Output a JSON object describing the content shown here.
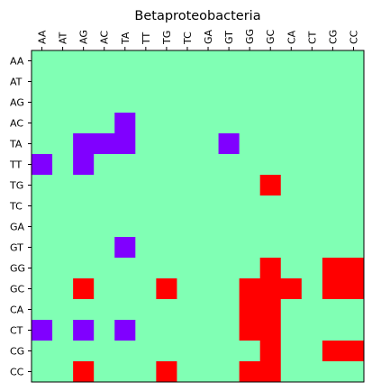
{
  "chart_data": {
    "type": "heatmap",
    "title": "Betaproteobacteria",
    "x_categories": [
      "AA",
      "AT",
      "AG",
      "AC",
      "TA",
      "TT",
      "TG",
      "TC",
      "GA",
      "GT",
      "GG",
      "GC",
      "CA",
      "CT",
      "CG",
      "CC"
    ],
    "y_categories": [
      "AA",
      "AT",
      "AG",
      "AC",
      "TA",
      "TT",
      "TG",
      "TC",
      "GA",
      "GT",
      "GG",
      "GC",
      "CA",
      "CT",
      "CG",
      "CC"
    ],
    "x_axis_position": "top",
    "x_tick_rotation": 90,
    "grid": false,
    "colors": {
      "-1": "#8000ff",
      "0": "#80ffb4",
      "1": "#ff0000"
    },
    "values": [
      [
        0,
        0,
        0,
        0,
        0,
        0,
        0,
        0,
        0,
        0,
        0,
        0,
        0,
        0,
        0,
        0
      ],
      [
        0,
        0,
        0,
        0,
        0,
        0,
        0,
        0,
        0,
        0,
        0,
        0,
        0,
        0,
        0,
        0
      ],
      [
        0,
        0,
        0,
        0,
        0,
        0,
        0,
        0,
        0,
        0,
        0,
        0,
        0,
        0,
        0,
        0
      ],
      [
        0,
        0,
        0,
        0,
        -1,
        0,
        0,
        0,
        0,
        0,
        0,
        0,
        0,
        0,
        0,
        0
      ],
      [
        0,
        0,
        -1,
        -1,
        -1,
        0,
        0,
        0,
        0,
        -1,
        0,
        0,
        0,
        0,
        0,
        0
      ],
      [
        -1,
        0,
        -1,
        0,
        0,
        0,
        0,
        0,
        0,
        0,
        0,
        0,
        0,
        0,
        0,
        0
      ],
      [
        0,
        0,
        0,
        0,
        0,
        0,
        0,
        0,
        0,
        0,
        0,
        1,
        0,
        0,
        0,
        0
      ],
      [
        0,
        0,
        0,
        0,
        0,
        0,
        0,
        0,
        0,
        0,
        0,
        0,
        0,
        0,
        0,
        0
      ],
      [
        0,
        0,
        0,
        0,
        0,
        0,
        0,
        0,
        0,
        0,
        0,
        0,
        0,
        0,
        0,
        0
      ],
      [
        0,
        0,
        0,
        0,
        -1,
        0,
        0,
        0,
        0,
        0,
        0,
        0,
        0,
        0,
        0,
        0
      ],
      [
        0,
        0,
        0,
        0,
        0,
        0,
        0,
        0,
        0,
        0,
        0,
        1,
        0,
        0,
        1,
        1
      ],
      [
        0,
        0,
        1,
        0,
        0,
        0,
        1,
        0,
        0,
        0,
        1,
        1,
        1,
        0,
        1,
        1
      ],
      [
        0,
        0,
        0,
        0,
        0,
        0,
        0,
        0,
        0,
        0,
        1,
        1,
        0,
        0,
        0,
        0
      ],
      [
        -1,
        0,
        -1,
        0,
        -1,
        0,
        0,
        0,
        0,
        0,
        1,
        1,
        0,
        0,
        0,
        0
      ],
      [
        0,
        0,
        0,
        0,
        0,
        0,
        0,
        0,
        0,
        0,
        0,
        1,
        0,
        0,
        1,
        1
      ],
      [
        0,
        0,
        1,
        0,
        0,
        0,
        1,
        0,
        0,
        0,
        1,
        1,
        0,
        0,
        0,
        0
      ]
    ]
  }
}
